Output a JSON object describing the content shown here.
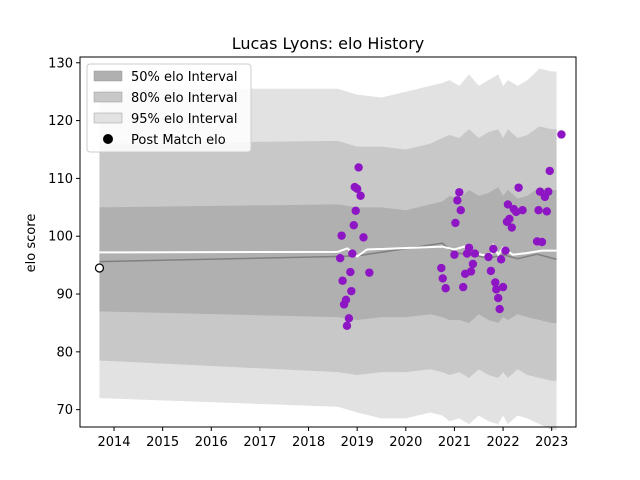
{
  "chart_data": {
    "type": "scatter",
    "title": "Lucas Lyons: elo History",
    "xlabel": "",
    "ylabel": "elo score",
    "xlim": [
      2013.3,
      2023.5
    ],
    "ylim": [
      67,
      131
    ],
    "x_ticks": [
      "2014",
      "2015",
      "2016",
      "2017",
      "2018",
      "2019",
      "2020",
      "2021",
      "2022",
      "2023"
    ],
    "y_ticks": [
      "70",
      "80",
      "90",
      "100",
      "110",
      "120",
      "130"
    ],
    "legend_position": "top-left",
    "legend": [
      {
        "label": "50% elo Interval",
        "kind": "band",
        "color": "#b0b0b0"
      },
      {
        "label": "80% elo Interval",
        "kind": "band",
        "color": "#c8c8c8"
      },
      {
        "label": "95% elo Interval",
        "kind": "band",
        "color": "#e2e2e2"
      },
      {
        "label": "Post Match elo",
        "kind": "marker",
        "color": "#000000"
      }
    ],
    "colors": {
      "band50": "#b0b0b0",
      "band80": "#c8c8c8",
      "band95": "#e2e2e2",
      "mean_line": "#808080",
      "average_line": "#ffffff",
      "points": "#8e15c4"
    },
    "initial_point": {
      "x": 2013.7,
      "y": 94.5
    },
    "bands_x": [
      2013.7,
      2018.6,
      2019.0,
      2019.5,
      2020.0,
      2020.5,
      2020.75,
      2020.9,
      2021.1,
      2021.3,
      2021.5,
      2021.7,
      2021.9,
      2022.0,
      2022.1,
      2022.3,
      2022.5,
      2022.75,
      2023.0,
      2023.1
    ],
    "band95_upper": [
      125.5,
      125.5,
      124.5,
      124,
      125,
      126,
      126.5,
      127,
      126,
      128,
      126,
      127,
      128,
      126,
      127,
      126,
      127,
      129,
      128.5,
      128.5
    ],
    "band95_lower": [
      72,
      70.5,
      69.5,
      68.5,
      68.5,
      69.5,
      69,
      68,
      68.5,
      67.5,
      69,
      68,
      67.5,
      69,
      67.5,
      69,
      68.5,
      67.5,
      66.5,
      66.5
    ],
    "band80_upper": [
      116,
      116.5,
      115.5,
      115.5,
      115,
      116,
      117,
      117.5,
      117,
      118.5,
      117,
      118,
      118.5,
      117,
      118.5,
      117,
      117.5,
      119,
      118.5,
      118.5
    ],
    "band80_lower": [
      78.5,
      76.5,
      76,
      76.5,
      76.5,
      77,
      76.5,
      76,
      76.5,
      75.5,
      77,
      76,
      75.5,
      76.5,
      75.5,
      77,
      76,
      75.5,
      75,
      75
    ],
    "band50_upper": [
      105,
      105.5,
      105,
      105,
      104.5,
      105.5,
      106,
      107,
      106.5,
      108,
      107,
      107.5,
      108.5,
      107,
      108,
      106.5,
      107,
      108.5,
      108,
      108
    ],
    "band50_lower": [
      87,
      86,
      85.5,
      86,
      86,
      86.5,
      86,
      85.5,
      85.5,
      85,
      86.5,
      85.5,
      85,
      86,
      85.5,
      86.5,
      86,
      85.5,
      85,
      85
    ],
    "mean_line": {
      "x": [
        2013.7,
        2018.6,
        2019.0,
        2020.75,
        2021.0,
        2021.3,
        2021.7,
        2022.0,
        2022.3,
        2022.7,
        2023.1
      ],
      "y": [
        95.6,
        96.5,
        96.6,
        98.8,
        97.1,
        96.9,
        96.2,
        96.8,
        96.1,
        96.9,
        96.0
      ]
    },
    "average_line": {
      "x": [
        2013.7,
        2018.6,
        2018.8,
        2019.0,
        2019.2,
        2020.75,
        2021.0,
        2021.2,
        2021.5,
        2021.75,
        2021.8,
        2021.9,
        2022.0,
        2022.2,
        2022.5,
        2022.8,
        2023.1
      ],
      "y": [
        97.2,
        97.3,
        97.9,
        96.5,
        97.7,
        98.2,
        97.7,
        98.2,
        96.9,
        96.5,
        98.4,
        96.8,
        98.0,
        96.8,
        97.1,
        97.5,
        97.5
      ]
    },
    "points": [
      {
        "x": 2018.65,
        "y": 96.2
      },
      {
        "x": 2018.68,
        "y": 100.1
      },
      {
        "x": 2018.7,
        "y": 92.3
      },
      {
        "x": 2018.73,
        "y": 88.2
      },
      {
        "x": 2018.77,
        "y": 89.0
      },
      {
        "x": 2018.79,
        "y": 84.5
      },
      {
        "x": 2018.83,
        "y": 85.8
      },
      {
        "x": 2018.86,
        "y": 93.8
      },
      {
        "x": 2018.88,
        "y": 90.5
      },
      {
        "x": 2018.9,
        "y": 97.0
      },
      {
        "x": 2018.93,
        "y": 101.9
      },
      {
        "x": 2018.95,
        "y": 108.5
      },
      {
        "x": 2018.97,
        "y": 104.4
      },
      {
        "x": 2019.0,
        "y": 108.2
      },
      {
        "x": 2019.03,
        "y": 111.9
      },
      {
        "x": 2019.07,
        "y": 107.0
      },
      {
        "x": 2019.13,
        "y": 99.8
      },
      {
        "x": 2019.25,
        "y": 93.7
      },
      {
        "x": 2020.73,
        "y": 94.5
      },
      {
        "x": 2020.76,
        "y": 92.7
      },
      {
        "x": 2020.82,
        "y": 91.0
      },
      {
        "x": 2021.0,
        "y": 96.8
      },
      {
        "x": 2021.02,
        "y": 102.3
      },
      {
        "x": 2021.06,
        "y": 106.2
      },
      {
        "x": 2021.1,
        "y": 107.6
      },
      {
        "x": 2021.13,
        "y": 104.5
      },
      {
        "x": 2021.18,
        "y": 91.2
      },
      {
        "x": 2021.22,
        "y": 93.5
      },
      {
        "x": 2021.26,
        "y": 97.0
      },
      {
        "x": 2021.3,
        "y": 98.0
      },
      {
        "x": 2021.34,
        "y": 93.9
      },
      {
        "x": 2021.38,
        "y": 95.2
      },
      {
        "x": 2021.42,
        "y": 97.0
      },
      {
        "x": 2021.7,
        "y": 96.4
      },
      {
        "x": 2021.75,
        "y": 94.0
      },
      {
        "x": 2021.8,
        "y": 97.8
      },
      {
        "x": 2021.84,
        "y": 92.0
      },
      {
        "x": 2021.86,
        "y": 90.8
      },
      {
        "x": 2021.9,
        "y": 89.3
      },
      {
        "x": 2021.93,
        "y": 87.4
      },
      {
        "x": 2021.96,
        "y": 96.0
      },
      {
        "x": 2022.0,
        "y": 91.2
      },
      {
        "x": 2022.05,
        "y": 97.5
      },
      {
        "x": 2022.08,
        "y": 102.5
      },
      {
        "x": 2022.1,
        "y": 105.5
      },
      {
        "x": 2022.13,
        "y": 103.0
      },
      {
        "x": 2022.18,
        "y": 101.5
      },
      {
        "x": 2022.22,
        "y": 104.7
      },
      {
        "x": 2022.27,
        "y": 104.2
      },
      {
        "x": 2022.32,
        "y": 108.4
      },
      {
        "x": 2022.4,
        "y": 104.5
      },
      {
        "x": 2022.7,
        "y": 99.1
      },
      {
        "x": 2022.73,
        "y": 104.5
      },
      {
        "x": 2022.76,
        "y": 107.7
      },
      {
        "x": 2022.8,
        "y": 99.0
      },
      {
        "x": 2022.86,
        "y": 106.8
      },
      {
        "x": 2022.9,
        "y": 104.3
      },
      {
        "x": 2022.93,
        "y": 107.7
      },
      {
        "x": 2022.96,
        "y": 111.3
      },
      {
        "x": 2023.2,
        "y": 117.6
      }
    ]
  }
}
